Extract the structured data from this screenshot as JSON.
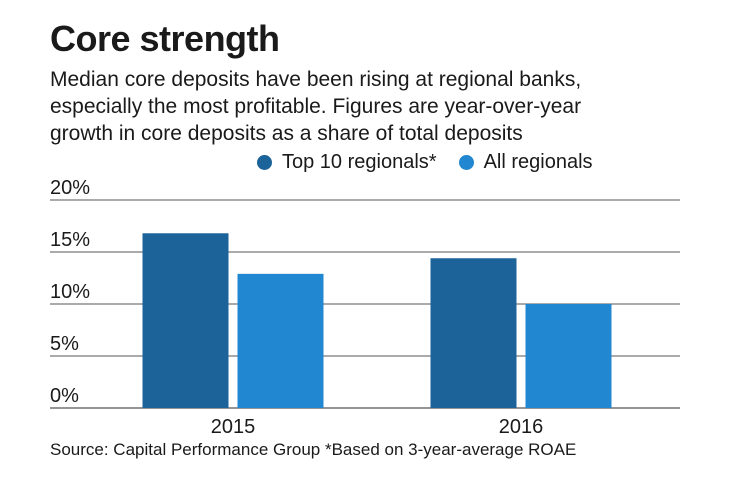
{
  "title": "Core strength",
  "subtitle_lines": [
    "Median core deposits have been rising at regional banks,",
    "especially the most profitable. Figures are year-over-year",
    "growth in core deposits as a share of total deposits"
  ],
  "source": "Source: Capital Performance Group *Based on 3-year-average ROAE",
  "colors": {
    "top10": "#1b6399",
    "all": "#2087d0",
    "grid": "#555555",
    "text": "#1a1a1a"
  },
  "chart_data": {
    "type": "bar",
    "title": "Core strength",
    "categories": [
      "2015",
      "2016"
    ],
    "series": [
      {
        "name": "Top 10 regionals*",
        "values": [
          16.8,
          14.4
        ]
      },
      {
        "name": "All regionals",
        "values": [
          12.9,
          10.0
        ]
      }
    ],
    "ylim": [
      0,
      20
    ],
    "yticks": [
      0,
      5,
      10,
      15,
      20
    ],
    "ytick_labels": [
      "0%",
      "5%",
      "10%",
      "15%",
      "20%"
    ],
    "xlabel": "",
    "ylabel": "",
    "legend": "top",
    "grid": true
  }
}
